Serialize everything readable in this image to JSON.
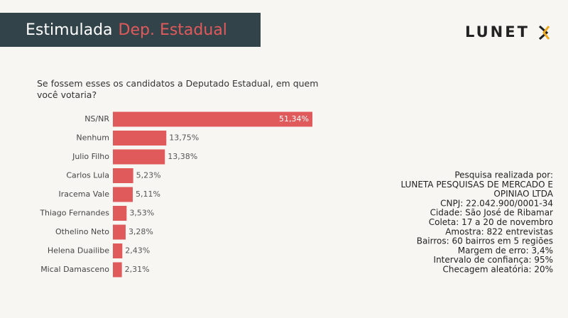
{
  "header": {
    "title": "Estimulada",
    "title_highlight": "Dep. Estadual",
    "logo": "LUNET"
  },
  "chart_data": {
    "type": "bar",
    "orientation": "horizontal",
    "title": "Se fossem esses os candidatos a Deputado Estadual, em quem você votaria?",
    "categories": [
      "NS/NR",
      "Nenhum",
      "Julio Filho",
      "Carlos Lula",
      "Iracema Vale",
      "Thiago Fernandes",
      "Othelino Neto",
      "Helena Duailibe",
      "Mical Damasceno"
    ],
    "values": [
      51.34,
      13.75,
      13.38,
      5.23,
      5.11,
      3.53,
      3.28,
      2.43,
      2.31
    ],
    "value_labels": [
      "51,34%",
      "13,75%",
      "13,38%",
      "5,23%",
      "5,11%",
      "3,53%",
      "3,28%",
      "2,43%",
      "2,31%"
    ],
    "color": "#e05a5c"
  },
  "notes": [
    "Pesquisa realizada por:",
    "LUNETA PESQUISAS DE MERCADO E",
    "OPINIAO LTDA",
    "CNPJ: 22.042.900/0001-34",
    "Cidade: São José de Ribamar",
    "Coleta: 17 a 20 de novembro",
    "Amostra: 822 entrevistas",
    "Bairros: 60 bairros em 5 regiões",
    "Margem de erro: 3,4%",
    "Intervalo de confiança: 95%",
    "Checagem aleatória: 20%"
  ]
}
